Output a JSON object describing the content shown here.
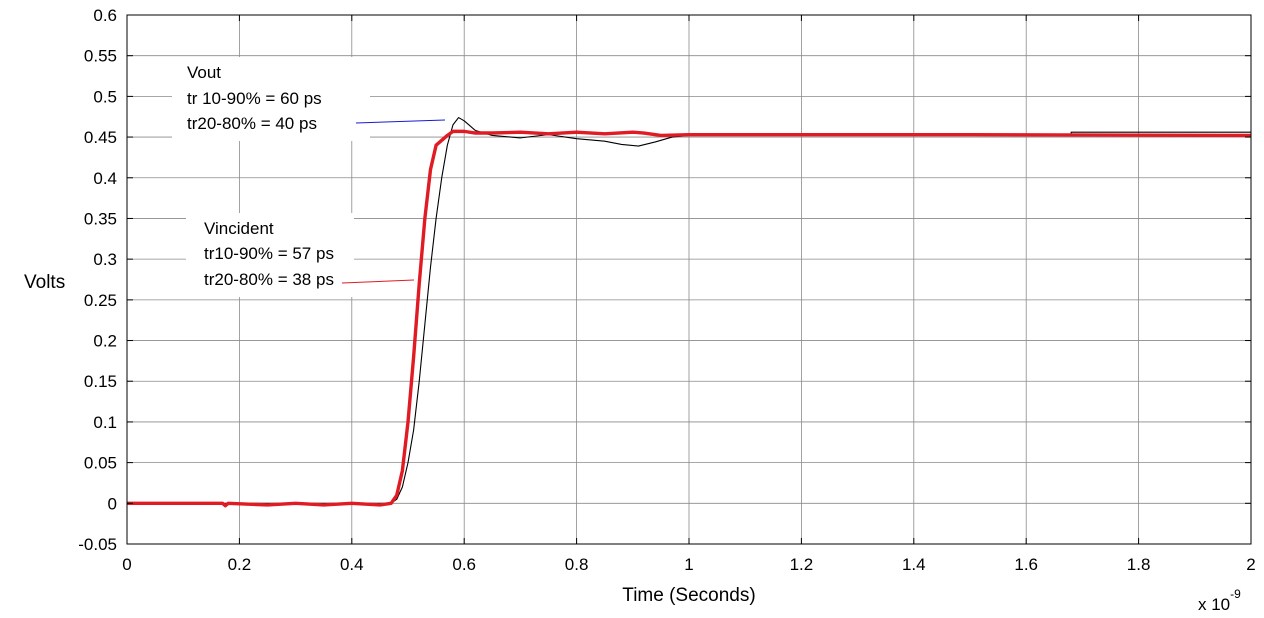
{
  "chart_data": {
    "type": "line",
    "title": "",
    "xlabel": "Time (Seconds)",
    "ylabel": "Volts",
    "x_multiplier": "x 10",
    "x_multiplier_exponent": "-9",
    "xlim": [
      0,
      2
    ],
    "ylim": [
      -0.05,
      0.6
    ],
    "grid": true,
    "x_ticks": [
      0,
      0.2,
      0.4,
      0.6,
      0.8,
      1,
      1.2,
      1.4,
      1.6,
      1.8,
      2
    ],
    "x_tick_labels": [
      "0",
      "0.2",
      "0.4",
      "0.6",
      "0.8",
      "1",
      "1.2",
      "1.4",
      "1.6",
      "1.8",
      "2"
    ],
    "y_ticks": [
      -0.05,
      0,
      0.05,
      0.1,
      0.15,
      0.2,
      0.25,
      0.3,
      0.35,
      0.4,
      0.45,
      0.5,
      0.55,
      0.6
    ],
    "y_tick_labels": [
      "-0.05",
      "0",
      "0.05",
      "0.1",
      "0.15",
      "0.2",
      "0.25",
      "0.3",
      "0.35",
      "0.4",
      "0.45",
      "0.5",
      "0.55",
      "0.6"
    ],
    "series": [
      {
        "color": "#000000",
        "points": [
          [
            0,
            0
          ],
          [
            0.2,
            0
          ],
          [
            0.4,
            0
          ],
          [
            0.47,
            0
          ],
          [
            0.48,
            0.005
          ],
          [
            0.49,
            0.02
          ],
          [
            0.5,
            0.05
          ],
          [
            0.51,
            0.09
          ],
          [
            0.52,
            0.15
          ],
          [
            0.53,
            0.22
          ],
          [
            0.54,
            0.29
          ],
          [
            0.55,
            0.35
          ],
          [
            0.56,
            0.4
          ],
          [
            0.57,
            0.44
          ],
          [
            0.58,
            0.465
          ],
          [
            0.59,
            0.474
          ],
          [
            0.6,
            0.47
          ],
          [
            0.62,
            0.458
          ],
          [
            0.65,
            0.452
          ],
          [
            0.7,
            0.449
          ],
          [
            0.75,
            0.453
          ],
          [
            0.8,
            0.448
          ],
          [
            0.85,
            0.445
          ],
          [
            0.88,
            0.441
          ],
          [
            0.91,
            0.439
          ],
          [
            0.94,
            0.444
          ],
          [
            0.97,
            0.45
          ],
          [
            1.0,
            0.452
          ],
          [
            1.2,
            0.452
          ],
          [
            1.4,
            0.453
          ],
          [
            1.6,
            0.453
          ],
          [
            1.68,
            0.453
          ],
          [
            1.68,
            0.456
          ],
          [
            2.0,
            0.456
          ]
        ]
      },
      {
        "color": "#e01b24",
        "points": [
          [
            0,
            0
          ],
          [
            0.17,
            0
          ],
          [
            0.175,
            -0.003
          ],
          [
            0.18,
            0
          ],
          [
            0.25,
            -0.002
          ],
          [
            0.3,
            0
          ],
          [
            0.35,
            -0.002
          ],
          [
            0.4,
            0
          ],
          [
            0.45,
            -0.002
          ],
          [
            0.47,
            0
          ],
          [
            0.48,
            0.01
          ],
          [
            0.49,
            0.04
          ],
          [
            0.5,
            0.1
          ],
          [
            0.51,
            0.18
          ],
          [
            0.52,
            0.27
          ],
          [
            0.53,
            0.35
          ],
          [
            0.54,
            0.41
          ],
          [
            0.55,
            0.44
          ],
          [
            0.57,
            0.452
          ],
          [
            0.58,
            0.457
          ],
          [
            0.6,
            0.457
          ],
          [
            0.62,
            0.455
          ],
          [
            0.65,
            0.455
          ],
          [
            0.7,
            0.456
          ],
          [
            0.75,
            0.454
          ],
          [
            0.8,
            0.456
          ],
          [
            0.85,
            0.454
          ],
          [
            0.9,
            0.456
          ],
          [
            0.92,
            0.455
          ],
          [
            0.95,
            0.452
          ],
          [
            1.0,
            0.453
          ],
          [
            1.5,
            0.453
          ],
          [
            2.0,
            0.452
          ]
        ]
      }
    ],
    "annotations": {
      "vout": {
        "lines": [
          "Vout",
          "tr 10-90% = 60 ps",
          "tr20-80% = 40 ps"
        ],
        "arrow_color": "#1a1ad0"
      },
      "vincident": {
        "lines": [
          "Vincident",
          "tr10-90% = 57 ps",
          "tr20-80% = 38 ps"
        ],
        "arrow_color": "#e01b24"
      }
    }
  }
}
